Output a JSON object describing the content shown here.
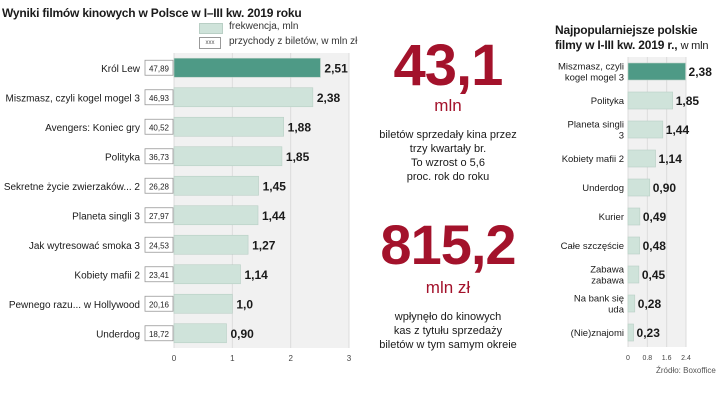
{
  "chart_data": [
    {
      "type": "bar",
      "orientation": "horizontal",
      "title": "Wyniki filmów kinowych w Polsce w I–III kw. 2019 roku",
      "legend": [
        {
          "label": "frekwencja, mln",
          "color": "#cfe3da"
        },
        {
          "label": "przychody z biletów, w mln zł",
          "marker": "xxx"
        }
      ],
      "categories": [
        "Król Lew",
        "Miszmasz, czyli kogel mogel 3",
        "Avengers: Koniec gry",
        "Polityka",
        "Sekretne życie zwierzaków... 2",
        "Planeta singli 3",
        "Jak wytresować smoka 3",
        "Kobiety mafii 2",
        "Pewnego razu... w Hollywood",
        "Underdog"
      ],
      "series": [
        {
          "name": "frekwencja, mln",
          "values": [
            2.51,
            2.38,
            1.88,
            1.85,
            1.45,
            1.44,
            1.27,
            1.14,
            1.0,
            0.9
          ],
          "labels": [
            "2,51",
            "2,38",
            "1,88",
            "1,85",
            "1,45",
            "1,44",
            "1,27",
            "1,14",
            "1,0",
            "0,90"
          ]
        },
        {
          "name": "przychody z biletów, w mln zł",
          "values": [
            47.89,
            46.93,
            40.52,
            36.73,
            26.28,
            27.97,
            24.53,
            23.41,
            20.16,
            18.72
          ],
          "labels": [
            "47,89",
            "46,93",
            "40,52",
            "36,73",
            "26,28",
            "27,97",
            "24,53",
            "23,41",
            "20,16",
            "18,72"
          ]
        }
      ],
      "xlim": [
        0,
        3
      ],
      "xticks": [
        "0",
        "1",
        "2",
        "3"
      ],
      "highlight_index": 0
    },
    {
      "type": "bar",
      "orientation": "horizontal",
      "title": "Najpopularniejsze polskie filmy w I-III kw. 2019 r.",
      "title_lines": [
        "Najpopularniejsze polskie",
        "filmy w I-III kw. 2019 r.,"
      ],
      "unit": "w mln",
      "categories": [
        "Miszmasz, czyli kogel mogel 3",
        "Polityka",
        "Planeta singli 3",
        "Kobiety mafii 2",
        "Underdog",
        "Kurier",
        "Całe szczęście",
        "Zabawa zabawa",
        "Na bank się uda",
        "(Nie)znajomi"
      ],
      "category_lines": [
        [
          "Miszmasz, czyli",
          "kogel mogel 3"
        ],
        [
          "Polityka"
        ],
        [
          "Planeta singli",
          "3"
        ],
        [
          "Kobiety mafii 2"
        ],
        [
          "Underdog"
        ],
        [
          "Kurier"
        ],
        [
          "Całe szczęście"
        ],
        [
          "Zabawa",
          "zabawa"
        ],
        [
          "Na bank się",
          "uda"
        ],
        [
          "(Nie)znajomi"
        ]
      ],
      "values": [
        2.38,
        1.85,
        1.44,
        1.14,
        0.9,
        0.49,
        0.48,
        0.45,
        0.28,
        0.23
      ],
      "labels": [
        "2,38",
        "1,85",
        "1,44",
        "1,14",
        "0,90",
        "0,49",
        "0,48",
        "0,45",
        "0,28",
        "0,23"
      ],
      "xlim": [
        0,
        2.4
      ],
      "xticks": [
        "0",
        "0.8",
        "1.6",
        "2.4"
      ],
      "highlight_index": 0
    }
  ],
  "stats": {
    "tickets_value": "43,1",
    "tickets_unit": "mln",
    "tickets_desc": [
      "biletów sprzedały kina przez",
      "trzy kwartały br.",
      "To wzrost o 5,6",
      "proc. rok do roku"
    ],
    "revenue_value": "815,2",
    "revenue_unit": "mln zł",
    "revenue_desc": [
      "wpłynęło do kinowych",
      "kas z tytułu sprzedaży",
      "biletów w tym samym okreie"
    ]
  },
  "source": "Źródło: Boxoffice",
  "colors": {
    "bar": "#cfe3da",
    "bar_highlight": "#4e9a86",
    "accent": "#a3122b",
    "panel": "#f1f1f1"
  }
}
